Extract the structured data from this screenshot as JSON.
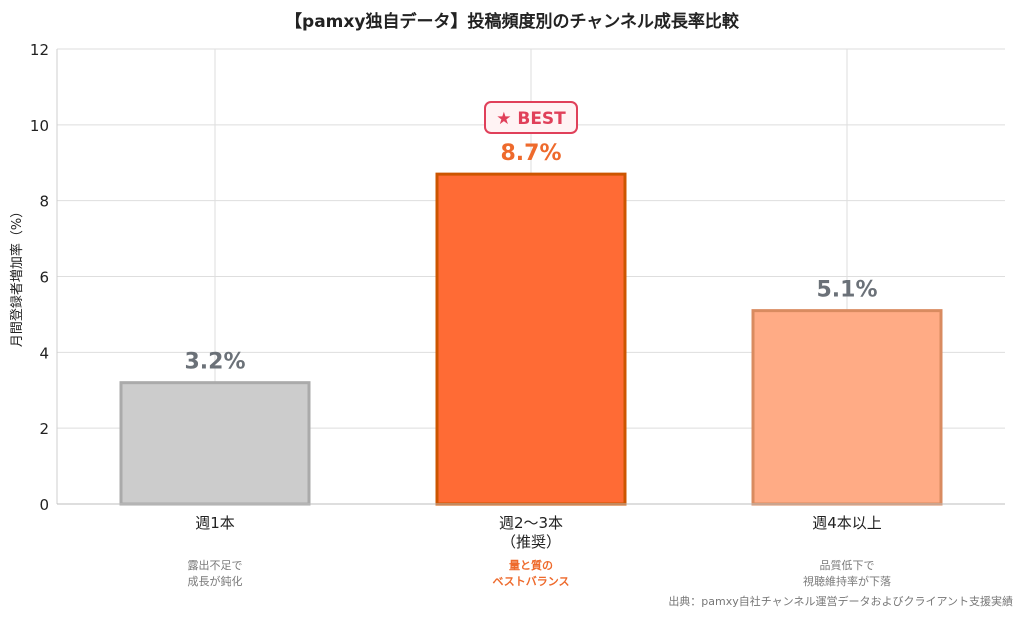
{
  "chart_data": {
    "type": "bar",
    "title": "【pamxy独自データ】投稿頻度別のチャンネル成長率比較",
    "ylabel": "月間登録者増加率（%）",
    "xlabel": "",
    "ylim": [
      0,
      12
    ],
    "yticks": [
      0,
      2,
      4,
      6,
      8,
      10,
      12
    ],
    "grid": true,
    "categories": [
      {
        "line1": "週1本",
        "line2": ""
      },
      {
        "line1": "週2〜3本",
        "line2": "（推奨）"
      },
      {
        "line1": "週4本以上",
        "line2": ""
      }
    ],
    "values": [
      3.2,
      8.7,
      5.1
    ],
    "value_labels": [
      "3.2%",
      "8.7%",
      "5.1%"
    ],
    "bar_colors": [
      {
        "fill": "#cccccc",
        "stroke": "#aaaaaa"
      },
      {
        "fill": "#ff6b35",
        "stroke": "#cc5500"
      },
      {
        "fill": "#ffab85",
        "stroke": "#d98b60"
      }
    ],
    "value_label_colors": [
      "#6b7178",
      "#ee6a2c",
      "#6b7178"
    ],
    "notes": [
      {
        "line1": "露出不足で",
        "line2": "成長が鈍化",
        "color": "#7a7a7a",
        "bold": false
      },
      {
        "line1": "量と質の",
        "line2": "ベストバランス",
        "color": "#ee6a2c",
        "bold": true
      },
      {
        "line1": "品質低下で",
        "line2": "視聴維持率が下落",
        "color": "#7a7a7a",
        "bold": false
      }
    ],
    "badge": {
      "text": "★ BEST",
      "category_index": 1,
      "color": "#e0405a",
      "bg": "#fff3f4"
    },
    "source": "出典：pamxy自社チャンネル運営データおよびクライアント支援実績"
  }
}
